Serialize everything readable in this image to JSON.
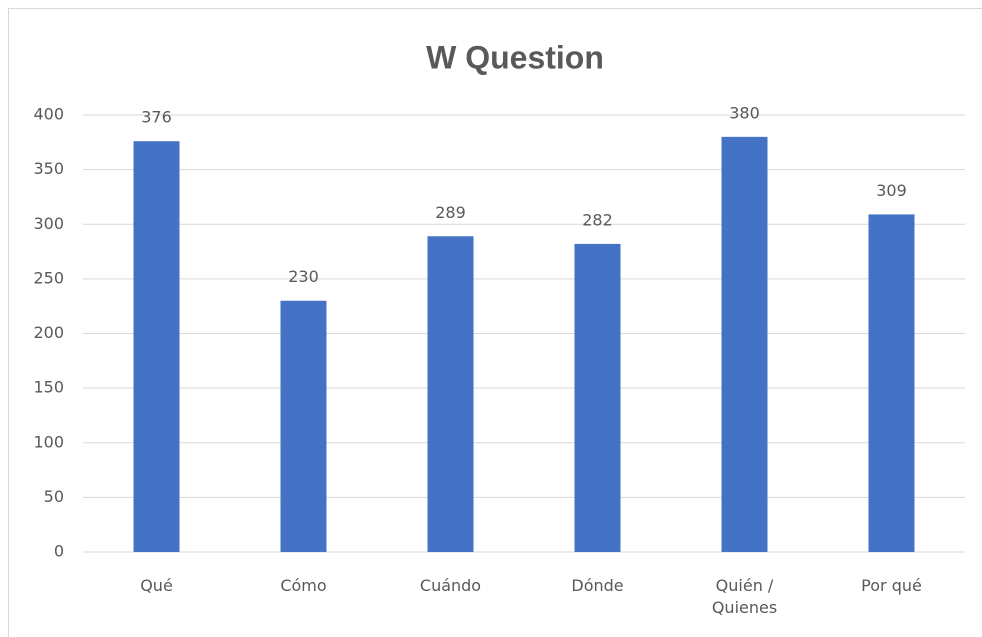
{
  "chart_data": {
    "type": "bar",
    "title": "W Question",
    "categories": [
      "Qué",
      "Cómo",
      "Cuándo",
      "Dónde",
      "Quién / Quienes",
      "Por qué"
    ],
    "values": [
      376,
      230,
      289,
      282,
      380,
      309
    ],
    "color": "#4472c4",
    "ylim": [
      0,
      400
    ],
    "yticks": [
      0,
      50,
      100,
      150,
      200,
      250,
      300,
      350,
      400
    ],
    "grid": true
  }
}
